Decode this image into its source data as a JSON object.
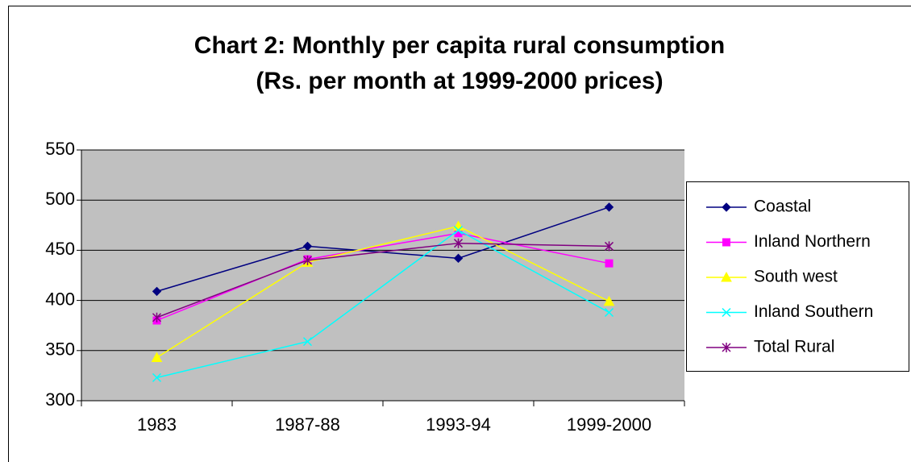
{
  "chart_data": {
    "type": "line",
    "title": [
      "Chart 2: Monthly per capita rural consumption",
      "(Rs. per month at 1999-2000 prices)"
    ],
    "categories": [
      "1983",
      "1987-88",
      "1993-94",
      "1999-2000"
    ],
    "series": [
      {
        "name": "Coastal",
        "color": "#000080",
        "marker": "diamond",
        "values": [
          409,
          454,
          442,
          493
        ]
      },
      {
        "name": "Inland Northern",
        "color": "#FF00FF",
        "marker": "square",
        "values": [
          380,
          441,
          467,
          437
        ]
      },
      {
        "name": "South west",
        "color": "#FFFF00",
        "marker": "triangle",
        "values": [
          343,
          438,
          474,
          399
        ]
      },
      {
        "name": "Inland Southern",
        "color": "#00FFFF",
        "marker": "x",
        "values": [
          323,
          359,
          470,
          388
        ]
      },
      {
        "name": "Total Rural",
        "color": "#800080",
        "marker": "star",
        "values": [
          383,
          440,
          457,
          454
        ]
      }
    ],
    "ylim": [
      300,
      550
    ],
    "yticks": [
      300,
      350,
      400,
      450,
      500,
      550
    ],
    "grid": true,
    "plot_background": "#C0C0C0",
    "legend": "right"
  }
}
